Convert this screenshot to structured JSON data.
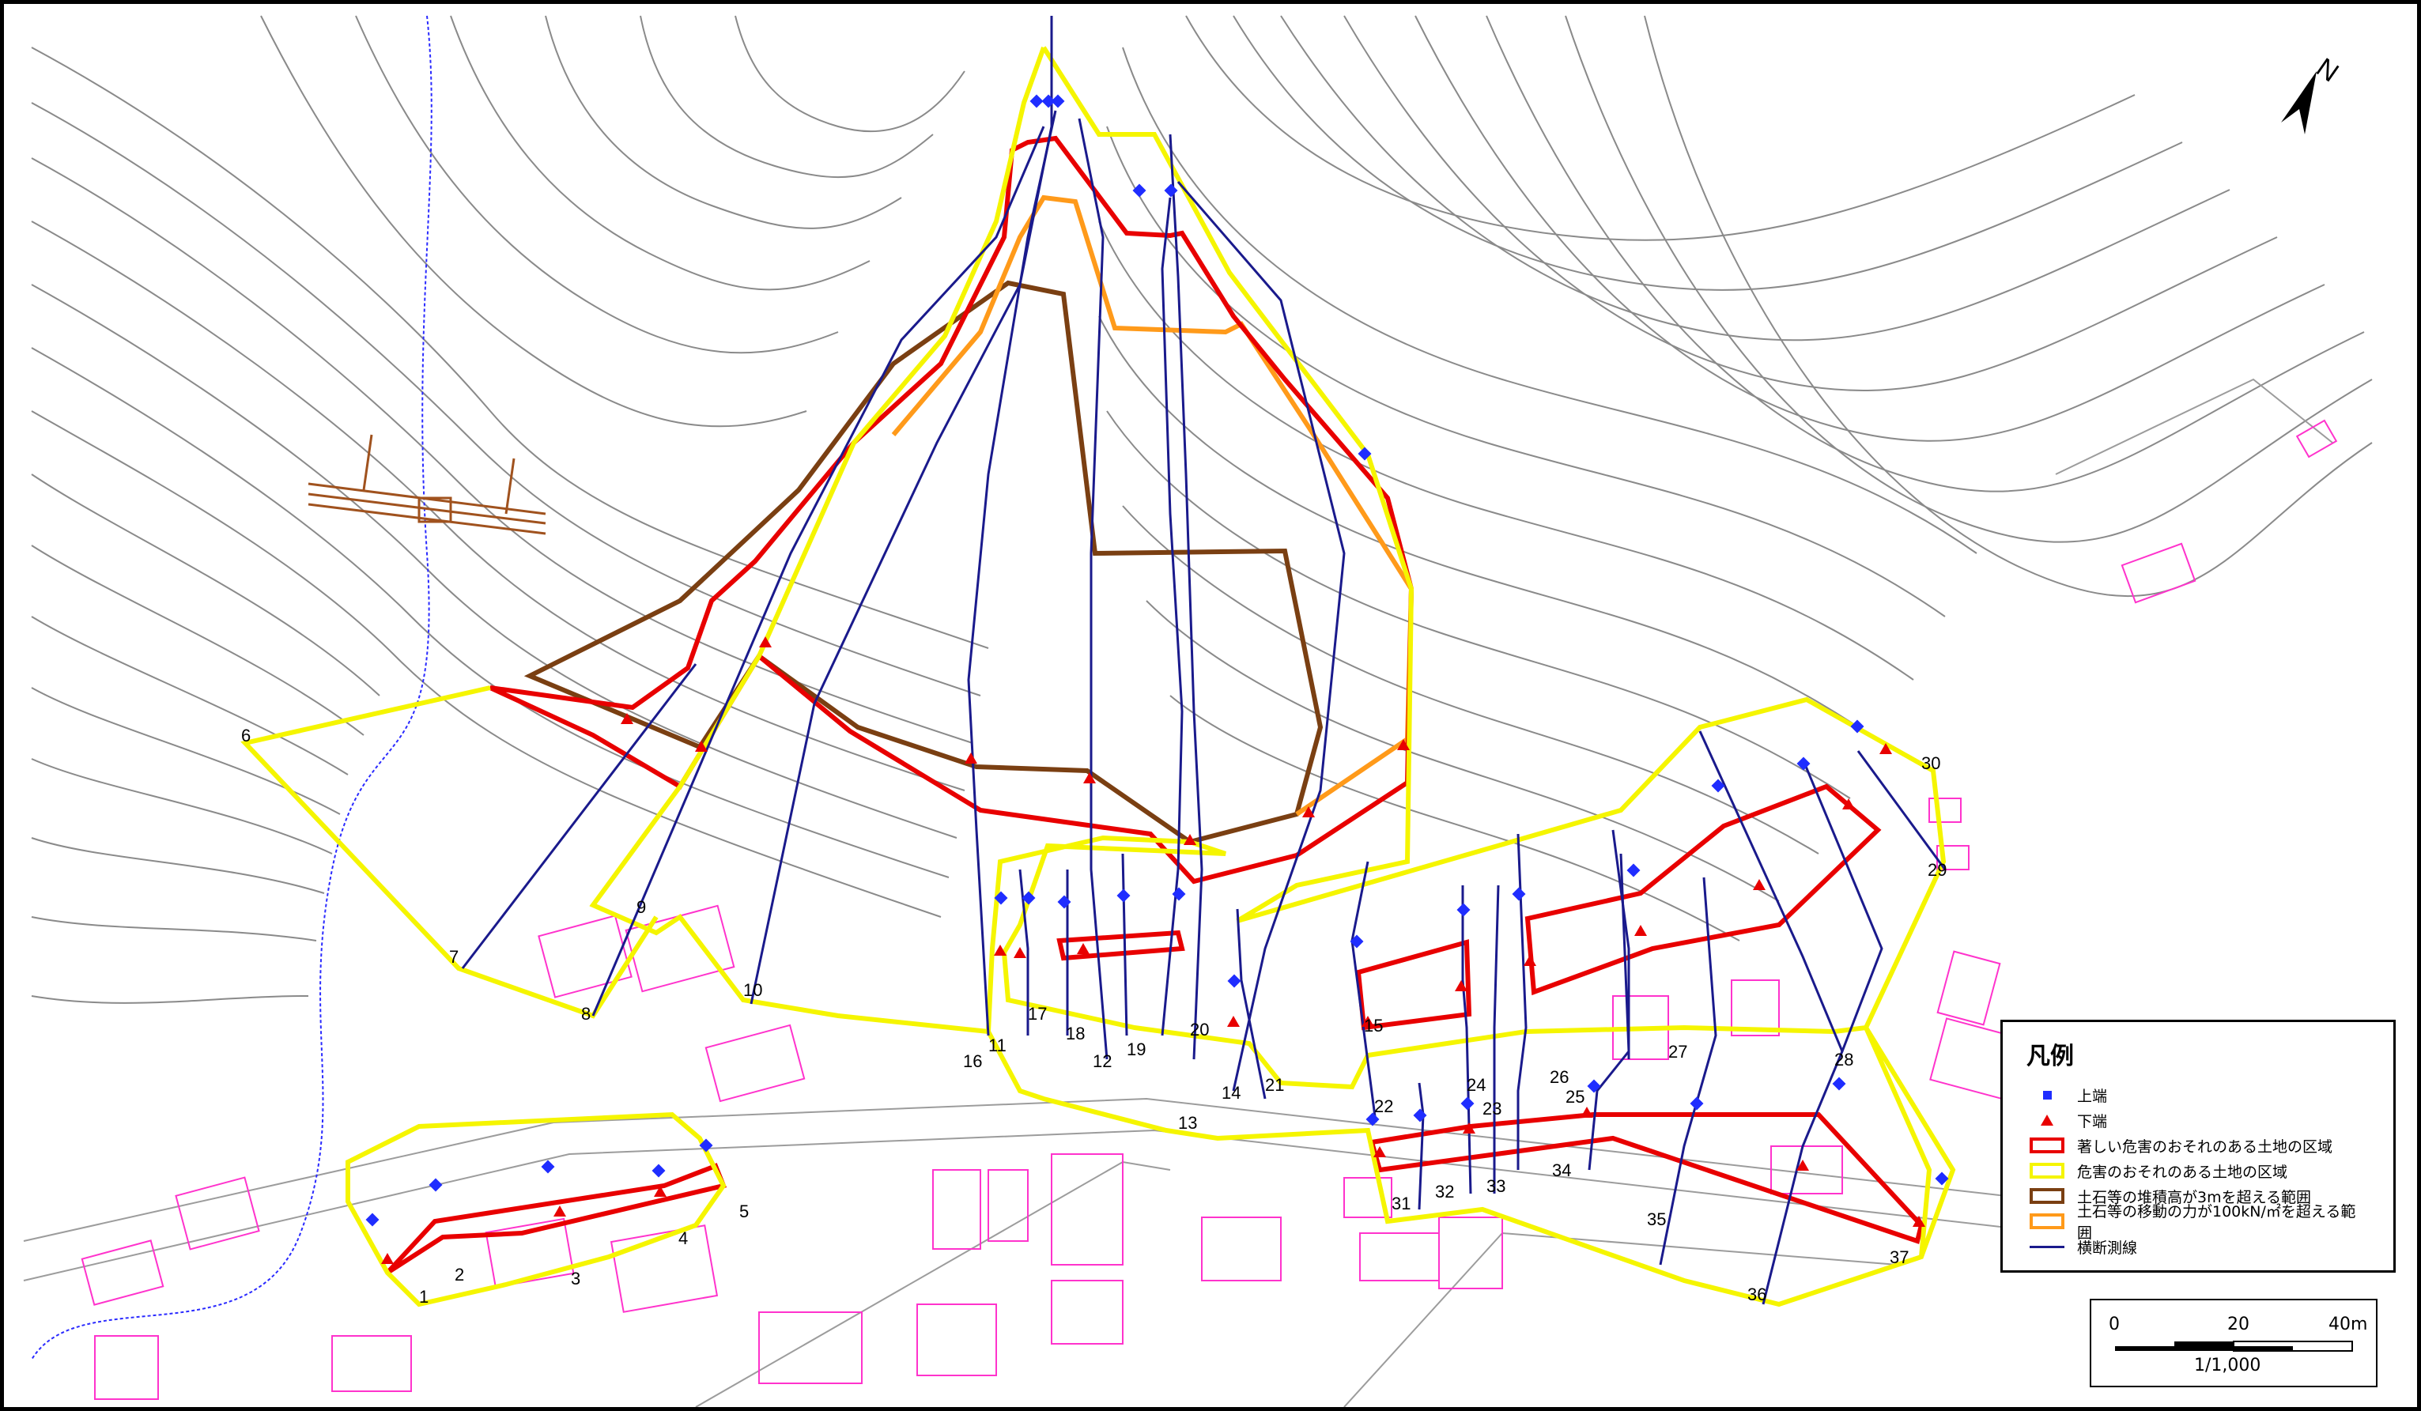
{
  "legend": {
    "title": "凡例",
    "items": [
      {
        "label": "上端",
        "symbol": "blue-square-icon",
        "color": "#1f2dff"
      },
      {
        "label": "下端",
        "symbol": "red-triangle-icon",
        "color": "#e80000"
      },
      {
        "label": "著しい危害のおそれのある土地の区域",
        "symbol": "red-box-icon",
        "color": "#e80000"
      },
      {
        "label": "危害のおそれのある土地の区域",
        "symbol": "yellow-box-icon",
        "color": "#f5f500"
      },
      {
        "label": "土石等の堆積高が3mを超える範囲",
        "symbol": "brown-box-icon",
        "color": "#7a3f12"
      },
      {
        "label": "土石等の移動の力が100kN/㎡を超える範囲",
        "symbol": "orange-box-icon",
        "color": "#ff9a1a"
      },
      {
        "label": "横断測線",
        "symbol": "navy-line-icon",
        "color": "#1a1a8c"
      }
    ]
  },
  "scale_bar": {
    "ticks": [
      "0",
      "20",
      "40m"
    ],
    "ratio": "1/1,000"
  },
  "north_arrow": {
    "label": "N"
  },
  "section_lines": [
    "1",
    "2",
    "3",
    "4",
    "5",
    "6",
    "7",
    "8",
    "9",
    "10",
    "11",
    "16",
    "17",
    "18",
    "12",
    "19",
    "20",
    "13",
    "14",
    "21",
    "15",
    "22",
    "24",
    "23",
    "26",
    "25",
    "27",
    "28",
    "29",
    "30",
    "31",
    "32",
    "33",
    "34",
    "35",
    "36",
    "37"
  ],
  "colors": {
    "danger_zone": "#e80000",
    "warning_zone": "#f5f500",
    "deposit_zone": "#7a3f12",
    "force_zone": "#ff9a1a",
    "section_line": "#1a1a8c",
    "contour": "#8a8a8a",
    "building": "#ff33cc"
  }
}
